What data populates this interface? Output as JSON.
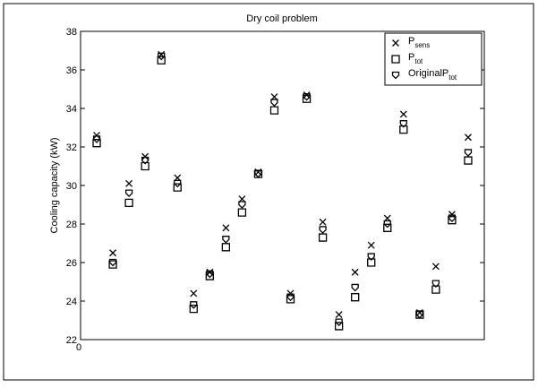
{
  "chart_data": {
    "type": "scatter",
    "title": "Dry coil problem",
    "ylabel": "Cooling capacity (kW)",
    "x": [
      1,
      2,
      3,
      4,
      5,
      6,
      7,
      8,
      9,
      10,
      11,
      12,
      13,
      14,
      15,
      16,
      17,
      18,
      19,
      20,
      21,
      22,
      23,
      24
    ],
    "xlim": [
      0,
      25
    ],
    "xticks": [
      0
    ],
    "ylim": [
      22,
      38
    ],
    "yticks": [
      22,
      24,
      26,
      28,
      30,
      32,
      34,
      36,
      38
    ],
    "legend": "upper right",
    "series": [
      {
        "name": "P",
        "subscript": "sens",
        "marker": "x",
        "color": "#000000",
        "values": [
          32.6,
          26.5,
          30.1,
          31.5,
          36.8,
          30.4,
          24.4,
          25.5,
          27.8,
          29.3,
          30.7,
          34.6,
          24.4,
          34.7,
          28.1,
          23.3,
          25.5,
          26.9,
          28.3,
          33.7,
          23.4,
          25.8,
          28.5,
          32.5
        ]
      },
      {
        "name": "P",
        "subscript": "tot",
        "marker": "square",
        "color": "#000000",
        "values": [
          32.2,
          25.9,
          29.1,
          31.0,
          36.5,
          29.9,
          23.6,
          25.3,
          26.8,
          28.6,
          30.6,
          33.9,
          24.1,
          34.5,
          27.3,
          22.7,
          24.2,
          26.0,
          27.8,
          32.9,
          23.3,
          24.6,
          28.2,
          31.3
        ]
      },
      {
        "name": "OriginalP",
        "subscript": "tot",
        "marker": "shield",
        "color": "#000000",
        "values": [
          32.4,
          26.0,
          29.6,
          31.3,
          36.7,
          30.1,
          23.8,
          25.4,
          27.2,
          29.0,
          30.6,
          34.3,
          24.2,
          34.6,
          27.7,
          22.9,
          24.7,
          26.3,
          28.0,
          33.2,
          23.3,
          24.9,
          28.3,
          31.7
        ]
      }
    ]
  }
}
